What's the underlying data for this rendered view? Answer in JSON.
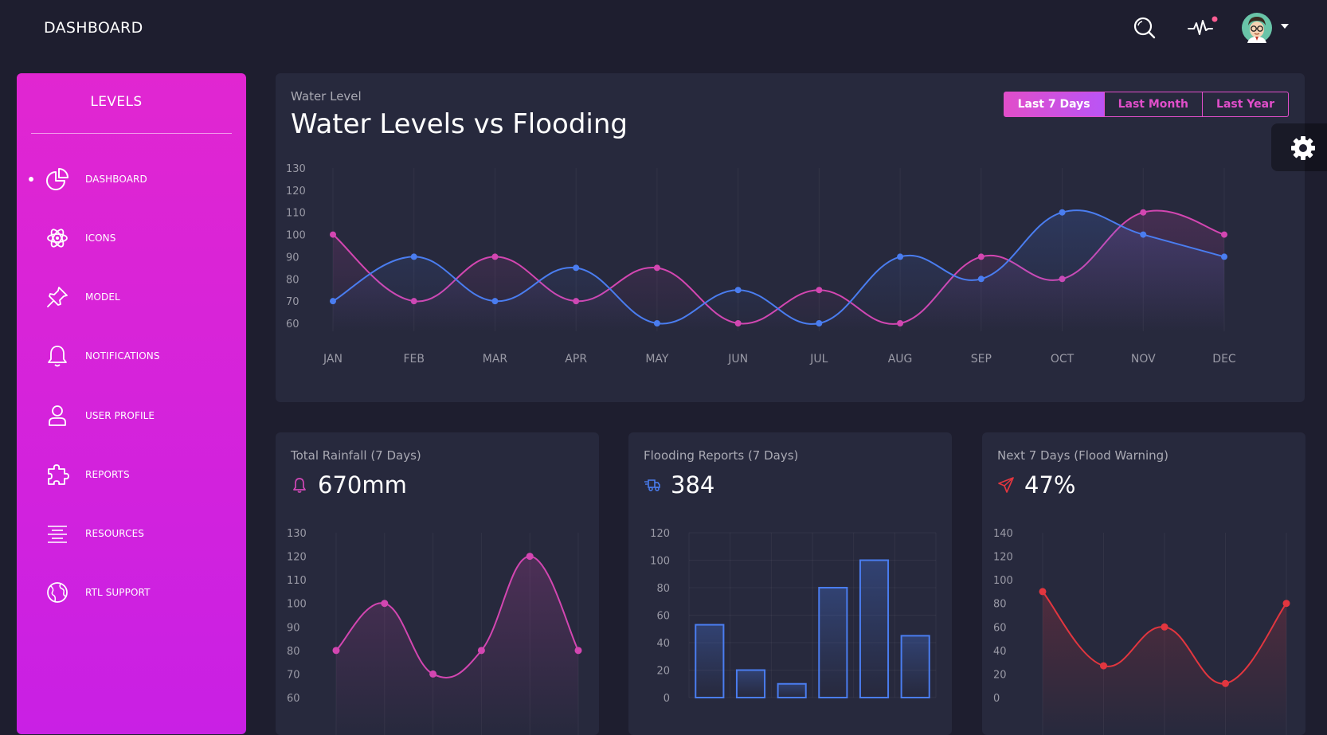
{
  "topbar": {
    "brand": "DASHBOARD",
    "icons": [
      "search-icon",
      "pulse-icon",
      "avatar",
      "caret-down-icon"
    ],
    "notification_dot_color": "#fd5d93"
  },
  "sidebar": {
    "title": "LEVELS",
    "items": [
      {
        "label": "DASHBOARD",
        "icon": "pie-chart-icon",
        "active": true
      },
      {
        "label": "ICONS",
        "icon": "atom-icon"
      },
      {
        "label": "MODEL",
        "icon": "pin-icon"
      },
      {
        "label": "NOTIFICATIONS",
        "icon": "bell-icon"
      },
      {
        "label": "USER PROFILE",
        "icon": "user-icon"
      },
      {
        "label": "REPORTS",
        "icon": "puzzle-icon"
      },
      {
        "label": "RESOURCES",
        "icon": "align-center-icon"
      },
      {
        "label": "RTL SUPPORT",
        "icon": "globe-icon"
      }
    ]
  },
  "main_card": {
    "category": "Water Level",
    "title": "Water Levels vs Flooding",
    "buttons": [
      "Last 7 Days",
      "Last Month",
      "Last Year"
    ],
    "active_button": 0
  },
  "small_cards": [
    {
      "heading": "Total Rainfall (7 Days)",
      "value": "670mm",
      "icon": "bell-icon",
      "color": "#d048b6"
    },
    {
      "heading": "Flooding Reports (7 Days)",
      "value": "384",
      "icon": "delivery-truck-icon",
      "color": "#1f8ef1"
    },
    {
      "heading": "Next 7 Days (Flood Warning)",
      "value": "47%",
      "icon": "paper-plane-icon",
      "color": "#ec250d"
    }
  ],
  "colors": {
    "background": "#1e1e2f",
    "card": "#27293d",
    "accent_pink": "#d346b1",
    "accent_blue": "#4a7df0",
    "accent_red": "#e2363f"
  },
  "chart_data": [
    {
      "type": "line",
      "categories": [
        "JAN",
        "FEB",
        "MAR",
        "APR",
        "MAY",
        "JUN",
        "JUL",
        "AUG",
        "SEP",
        "OCT",
        "NOV",
        "DEC"
      ],
      "series": [
        {
          "values": [
            100,
            70,
            90,
            70,
            85,
            60,
            75,
            60,
            90,
            80,
            110,
            100
          ],
          "color": "#d346b1"
        },
        {
          "values": [
            70,
            90,
            70,
            85,
            60,
            75,
            60,
            90,
            80,
            110,
            100,
            90
          ],
          "color": "#4a7df0"
        }
      ],
      "yticks": [
        60,
        70,
        80,
        90,
        100,
        110,
        120,
        130
      ],
      "ylim": [
        60,
        130
      ],
      "grid": "vertical"
    },
    {
      "type": "line",
      "series": [
        {
          "values": [
            80,
            100,
            70,
            80,
            120,
            80
          ],
          "color": "#d346b1"
        }
      ],
      "yticks": [
        60,
        70,
        80,
        90,
        100,
        110,
        120,
        130
      ],
      "ylim": [
        60,
        130
      ],
      "grid": "vertical"
    },
    {
      "type": "bar",
      "values": [
        53,
        20,
        10,
        80,
        100,
        45
      ],
      "color": "#4a7df0",
      "yticks": [
        0,
        20,
        40,
        60,
        80,
        100,
        120
      ],
      "ylim": [
        0,
        120
      ],
      "grid": "both"
    },
    {
      "type": "line",
      "series": [
        {
          "values": [
            90,
            27,
            60,
            12,
            80
          ],
          "color": "#e2363f"
        }
      ],
      "yticks": [
        0,
        20,
        40,
        60,
        80,
        100,
        120,
        140
      ],
      "ylim": [
        0,
        140
      ],
      "grid": "vertical"
    }
  ]
}
